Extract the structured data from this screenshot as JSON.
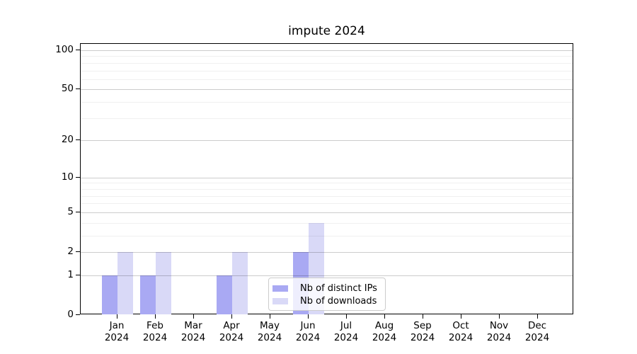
{
  "chart_data": {
    "type": "bar",
    "title": "impute 2024",
    "categories": [
      {
        "month": "Jan",
        "year": "2024"
      },
      {
        "month": "Feb",
        "year": "2024"
      },
      {
        "month": "Mar",
        "year": "2024"
      },
      {
        "month": "Apr",
        "year": "2024"
      },
      {
        "month": "May",
        "year": "2024"
      },
      {
        "month": "Jun",
        "year": "2024"
      },
      {
        "month": "Jul",
        "year": "2024"
      },
      {
        "month": "Aug",
        "year": "2024"
      },
      {
        "month": "Sep",
        "year": "2024"
      },
      {
        "month": "Oct",
        "year": "2024"
      },
      {
        "month": "Nov",
        "year": "2024"
      },
      {
        "month": "Dec",
        "year": "2024"
      }
    ],
    "series": [
      {
        "name": "Nb of distinct IPs",
        "color": "#a9a9f3",
        "values": [
          1,
          1,
          0,
          1,
          0,
          2,
          0,
          0,
          0,
          0,
          0,
          0
        ]
      },
      {
        "name": "Nb of downloads",
        "color": "#d9d9f7",
        "values": [
          2,
          2,
          0,
          2,
          0,
          4,
          0,
          0,
          0,
          0,
          0,
          0
        ]
      }
    ],
    "y_axis": {
      "scale": "log1p",
      "ticks": [
        0,
        1,
        2,
        5,
        10,
        20,
        50,
        100
      ],
      "minor_gridlines": [
        3,
        4,
        6,
        7,
        8,
        9,
        30,
        40,
        60,
        70,
        80,
        90
      ],
      "ylim": [
        0,
        100
      ]
    },
    "xlabel": "",
    "ylabel": "",
    "grid": "horizontal major and minor, drawn over bars",
    "legend_position": "inside plot, lower middle"
  }
}
